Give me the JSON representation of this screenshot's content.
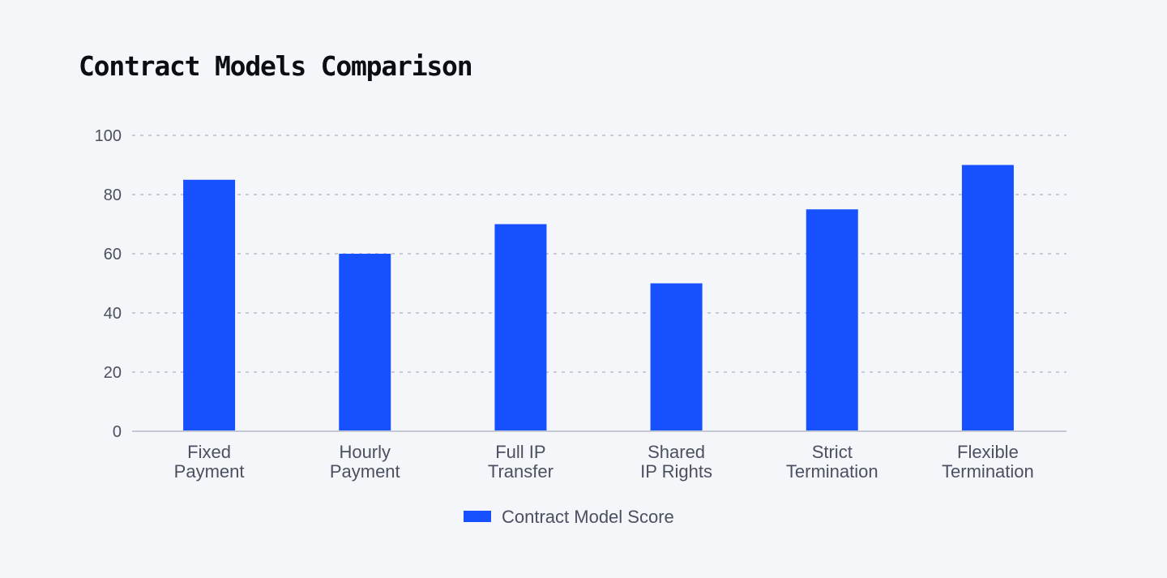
{
  "chart_data": {
    "type": "bar",
    "title": "Contract Models Comparison",
    "categories": [
      [
        "Fixed",
        "Payment"
      ],
      [
        "Hourly",
        "Payment"
      ],
      [
        "Full IP",
        "Transfer"
      ],
      [
        "Shared",
        "IP Rights"
      ],
      [
        "Strict",
        "Termination"
      ],
      [
        "Flexible",
        "Termination"
      ]
    ],
    "series": [
      {
        "name": "Contract Model Score",
        "values": [
          85,
          60,
          70,
          50,
          75,
          90
        ]
      }
    ],
    "ylim": [
      0,
      100
    ],
    "yticks": [
      "0",
      "20",
      "40",
      "60",
      "80",
      "100"
    ],
    "grid": true,
    "legend": "bottom",
    "colors": {
      "bar": "#1650ff",
      "grid": "#c9ccd6",
      "axis": "#c4c9d4"
    }
  }
}
